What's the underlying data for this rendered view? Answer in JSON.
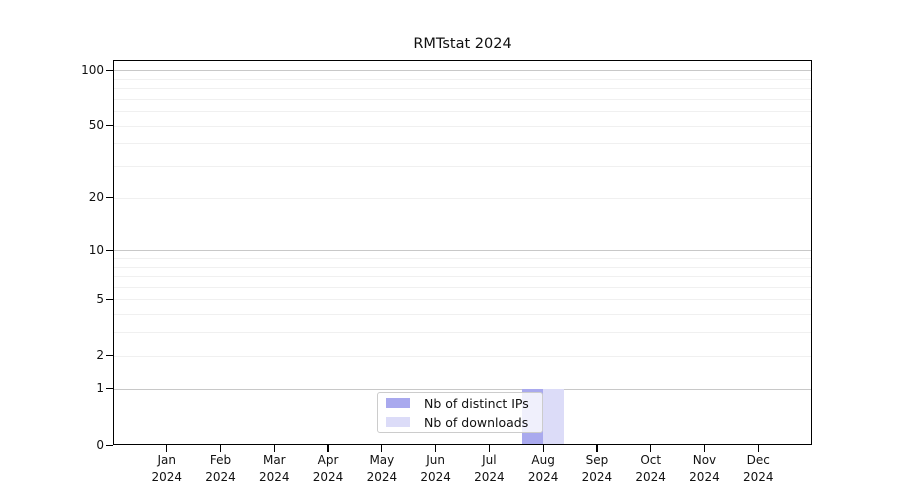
{
  "window": {
    "background": "#ffffff"
  },
  "header": {
    "title": "RMTstat 2024"
  },
  "chart_data": {
    "type": "bar",
    "title": "RMTstat 2024",
    "xlabel": "",
    "ylabel": "",
    "categories": [
      "Jan 2024",
      "Feb 2024",
      "Mar 2024",
      "Apr 2024",
      "May 2024",
      "Jun 2024",
      "Jul 2024",
      "Aug 2024",
      "Sep 2024",
      "Oct 2024",
      "Nov 2024",
      "Dec 2024"
    ],
    "series": [
      {
        "name": "Nb of distinct IPs",
        "color": "#a9a9ee",
        "values": [
          0,
          0,
          0,
          0,
          0,
          0,
          0,
          1,
          0,
          0,
          0,
          0
        ]
      },
      {
        "name": "Nb of downloads",
        "color": "#dcdcf8",
        "values": [
          0,
          0,
          0,
          0,
          0,
          0,
          0,
          1,
          0,
          0,
          0,
          0
        ]
      }
    ],
    "yscale": "log1p",
    "ylim": [
      0,
      113.5
    ],
    "y_tick_values": [
      100,
      50,
      20,
      10,
      5,
      2,
      1,
      0
    ],
    "y_tick_labels": [
      "100",
      "50",
      "20",
      "10",
      "5",
      "2",
      "1",
      "0"
    ],
    "major_grid_values": [
      100,
      10,
      1
    ],
    "minor_grid_values": [
      90,
      80,
      70,
      60,
      50,
      40,
      30,
      20,
      9,
      8,
      7,
      6,
      5,
      4,
      3,
      2
    ],
    "grid": true,
    "legend_position": "lower center"
  },
  "styles": {
    "major_grid_color": "#c8c8c8",
    "minor_grid_color": "#f0f0f0",
    "axis_color": "#000000",
    "text_color": "#111111"
  }
}
